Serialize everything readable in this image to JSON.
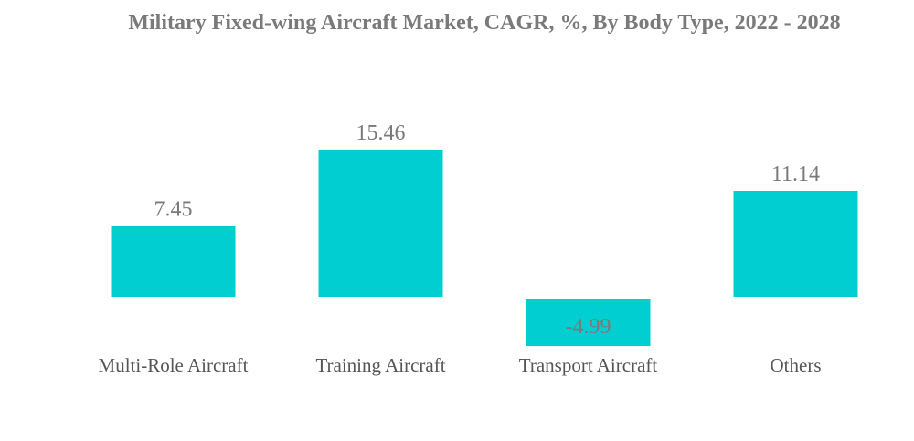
{
  "chart_data": {
    "type": "bar",
    "title": "Military Fixed-wing Aircraft Market, CAGR, %, By Body Type, 2022 - 2028",
    "categories": [
      "Multi-Role Aircraft",
      "Training Aircraft",
      "Transport Aircraft",
      "Others"
    ],
    "values": [
      7.45,
      15.46,
      -4.99,
      11.14
    ],
    "value_labels": [
      "7.45",
      "15.46",
      "-4.99",
      "11.14"
    ],
    "xlabel": "",
    "ylabel": "",
    "ylim": [
      -5,
      16
    ],
    "grid": false,
    "legend": "none",
    "bar_color": "#00CED1"
  }
}
